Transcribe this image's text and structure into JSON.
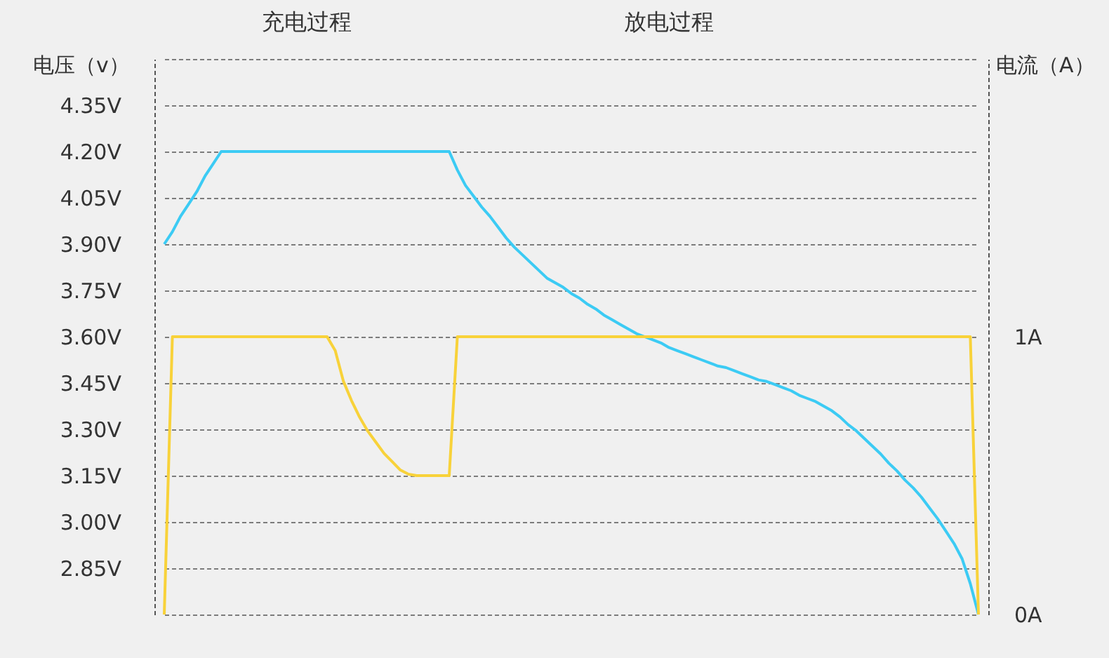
{
  "chart_data": {
    "type": "line",
    "ylabel": "电压（v）",
    "y2label": "电流（A）",
    "categories": [
      null,
      null,
      null,
      null,
      null,
      null,
      null,
      null,
      null,
      null,
      null,
      null,
      null,
      null,
      null,
      null,
      null,
      null,
      null,
      null,
      null,
      null,
      null,
      null,
      null,
      null,
      null,
      null,
      null,
      null,
      null,
      null,
      null,
      null,
      null,
      null,
      null,
      null,
      null,
      null,
      null,
      null,
      null,
      null,
      null,
      null,
      null,
      null,
      null,
      null,
      null,
      null,
      null,
      null,
      null,
      null,
      null,
      null,
      null,
      null,
      null,
      null,
      null,
      null,
      null,
      null,
      null,
      null,
      null,
      null,
      null,
      null,
      null,
      null,
      null,
      null,
      null,
      null,
      null,
      null,
      null,
      null,
      null,
      null,
      null,
      null,
      null,
      null,
      null,
      null,
      null,
      null,
      null,
      null,
      null,
      null,
      null,
      null,
      null,
      null,
      null
    ],
    "ylim": [
      2.7,
      4.5
    ],
    "y2lim": [
      0,
      2
    ],
    "yticks": [
      {
        "value": 2.7,
        "label": null
      },
      {
        "value": 2.85,
        "label": "2.85V"
      },
      {
        "value": 3.0,
        "label": "3.00V"
      },
      {
        "value": 3.15,
        "label": "3.15V"
      },
      {
        "value": 3.3,
        "label": "3.30V"
      },
      {
        "value": 3.45,
        "label": "3.45V"
      },
      {
        "value": 3.6,
        "label": "3.60V"
      },
      {
        "value": 3.75,
        "label": "3.75V"
      },
      {
        "value": 3.9,
        "label": "3.90V"
      },
      {
        "value": 4.05,
        "label": "4.05V"
      },
      {
        "value": 4.2,
        "label": "4.20V"
      },
      {
        "value": 4.35,
        "label": "4.35V"
      },
      {
        "value": 4.5,
        "label": null
      }
    ],
    "y2ticks": [
      {
        "value": 0,
        "label": "0A"
      },
      {
        "value": 1,
        "label": "1A"
      }
    ],
    "grid": "y",
    "marker": "none",
    "line_style": "solid",
    "annotations": [
      "充电过程",
      "放电过程"
    ],
    "series": [
      {
        "color": "#3ccbf4",
        "axis": "y",
        "values": [
          3.9,
          3.94,
          3.99,
          4.03,
          4.07,
          4.12,
          4.16,
          4.2,
          4.2,
          4.2,
          4.2,
          4.2,
          4.2,
          4.2,
          4.2,
          4.2,
          4.2,
          4.2,
          4.2,
          4.2,
          4.2,
          4.2,
          4.2,
          4.2,
          4.2,
          4.2,
          4.2,
          4.2,
          4.2,
          4.2,
          4.2,
          4.2,
          4.2,
          4.2,
          4.2,
          4.2,
          4.14,
          4.09,
          4.055,
          4.02,
          3.99,
          3.955,
          3.92,
          3.89,
          3.865,
          3.84,
          3.815,
          3.79,
          3.775,
          3.76,
          3.74,
          3.725,
          3.705,
          3.69,
          3.67,
          3.655,
          3.64,
          3.625,
          3.61,
          3.6,
          3.59,
          3.58,
          3.565,
          3.555,
          3.545,
          3.535,
          3.525,
          3.515,
          3.505,
          3.5,
          3.49,
          3.48,
          3.47,
          3.46,
          3.455,
          3.445,
          3.435,
          3.425,
          3.41,
          3.4,
          3.39,
          3.375,
          3.36,
          3.34,
          3.315,
          3.295,
          3.27,
          3.245,
          3.22,
          3.19,
          3.165,
          3.135,
          3.11,
          3.08,
          3.045,
          3.01,
          2.97,
          2.93,
          2.88,
          2.8,
          2.7
        ]
      },
      {
        "color": "#f8d23a",
        "axis": "y2",
        "values": [
          0,
          1,
          1,
          1,
          1,
          1,
          1,
          1,
          1,
          1,
          1,
          1,
          1,
          1,
          1,
          1,
          1,
          1,
          1,
          1,
          1,
          0.95,
          0.84,
          0.77,
          0.71,
          0.66,
          0.62,
          0.58,
          0.55,
          0.52,
          0.505,
          0.5,
          0.5,
          0.5,
          0.5,
          0.5,
          1,
          1,
          1,
          1,
          1,
          1,
          1,
          1,
          1,
          1,
          1,
          1,
          1,
          1,
          1,
          1,
          1,
          1,
          1,
          1,
          1,
          1,
          1,
          1,
          1,
          1,
          1,
          1,
          1,
          1,
          1,
          1,
          1,
          1,
          1,
          1,
          1,
          1,
          1,
          1,
          1,
          1,
          1,
          1,
          1,
          1,
          1,
          1,
          1,
          1,
          1,
          1,
          1,
          1,
          1,
          1,
          1,
          1,
          1,
          1,
          1,
          1,
          1,
          1,
          0
        ]
      }
    ]
  }
}
